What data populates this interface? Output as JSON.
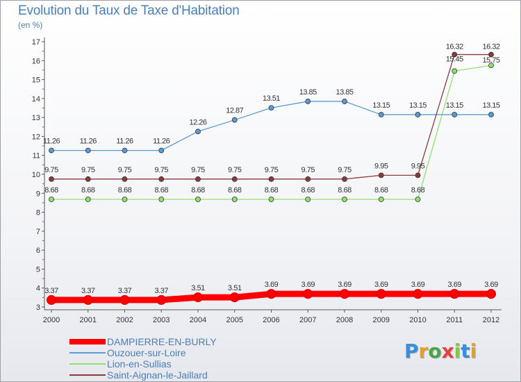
{
  "title": "Evolution du Taux de Taxe d'Habitation",
  "unit": "(en %)",
  "chart_data": {
    "type": "line",
    "title": "Evolution du Taux de Taxe d'Habitation",
    "ylabel": "(en %)",
    "xlabel": "",
    "ylim": [
      3,
      17
    ],
    "yticks": [
      3,
      4,
      5,
      6,
      7,
      8,
      9,
      10,
      11,
      12,
      13,
      14,
      15,
      16,
      17
    ],
    "categories": [
      "2000",
      "2001",
      "2002",
      "2003",
      "2004",
      "2005",
      "2006",
      "2007",
      "2008",
      "2009",
      "2010",
      "2011",
      "2012"
    ],
    "series": [
      {
        "name": "DAMPIERRE-EN-BURLY",
        "color": "#ff0000",
        "values": [
          3.37,
          3.37,
          3.37,
          3.37,
          3.51,
          3.51,
          3.69,
          3.69,
          3.69,
          3.69,
          3.69,
          3.69,
          3.69
        ],
        "labels": [
          "3.37",
          "3.37",
          "3.37",
          "3.37",
          "3.51",
          "3.51",
          "3.69",
          "3.69",
          "3.69",
          "3.69",
          "3.69",
          "3.69",
          "3.69"
        ]
      },
      {
        "name": "Ouzouer-sur-Loire",
        "color": "#5b9bd5",
        "values": [
          11.26,
          11.26,
          11.26,
          11.26,
          12.26,
          12.87,
          13.51,
          13.85,
          13.85,
          13.15,
          13.15,
          13.15,
          13.15
        ],
        "labels": [
          "11.26",
          "11.26",
          "11.26",
          "11.26",
          "12.26",
          "12.87",
          "13.51",
          "13.85",
          "13.85",
          "13.15",
          "13.15",
          "13.15",
          "13.15"
        ]
      },
      {
        "name": "Lion-en-Sullias",
        "color": "#90e070",
        "values": [
          8.68,
          8.68,
          8.68,
          8.68,
          8.68,
          8.68,
          8.68,
          8.68,
          8.68,
          8.68,
          8.68,
          15.45,
          15.75
        ],
        "labels": [
          "8.68",
          "8.68",
          "8.68",
          "8.68",
          "8.68",
          "8.68",
          "8.68",
          "8.68",
          "8.68",
          "8.68",
          "8.68",
          "15.45",
          "15.75"
        ]
      },
      {
        "name": "Saint-Aignan-le-Jaillard",
        "color": "#8b3a3a",
        "values": [
          9.75,
          9.75,
          9.75,
          9.75,
          9.75,
          9.75,
          9.75,
          9.75,
          9.75,
          9.95,
          9.95,
          16.32,
          16.32
        ],
        "labels": [
          "9.75",
          "9.75",
          "9.75",
          "9.75",
          "9.75",
          "9.75",
          "9.75",
          "9.75",
          "9.75",
          "9.95",
          "9.95",
          "16.32",
          "16.32"
        ]
      }
    ],
    "legend": "bottom-left"
  },
  "logo": {
    "letters": [
      "P",
      "r",
      "o",
      "x",
      "i",
      "t",
      "i"
    ],
    "colors": [
      "#3b8fd9",
      "#e8a020",
      "#4aa54a",
      "#e84040",
      "#8bc34a",
      "#3b8fd9",
      "#e8a020"
    ]
  }
}
